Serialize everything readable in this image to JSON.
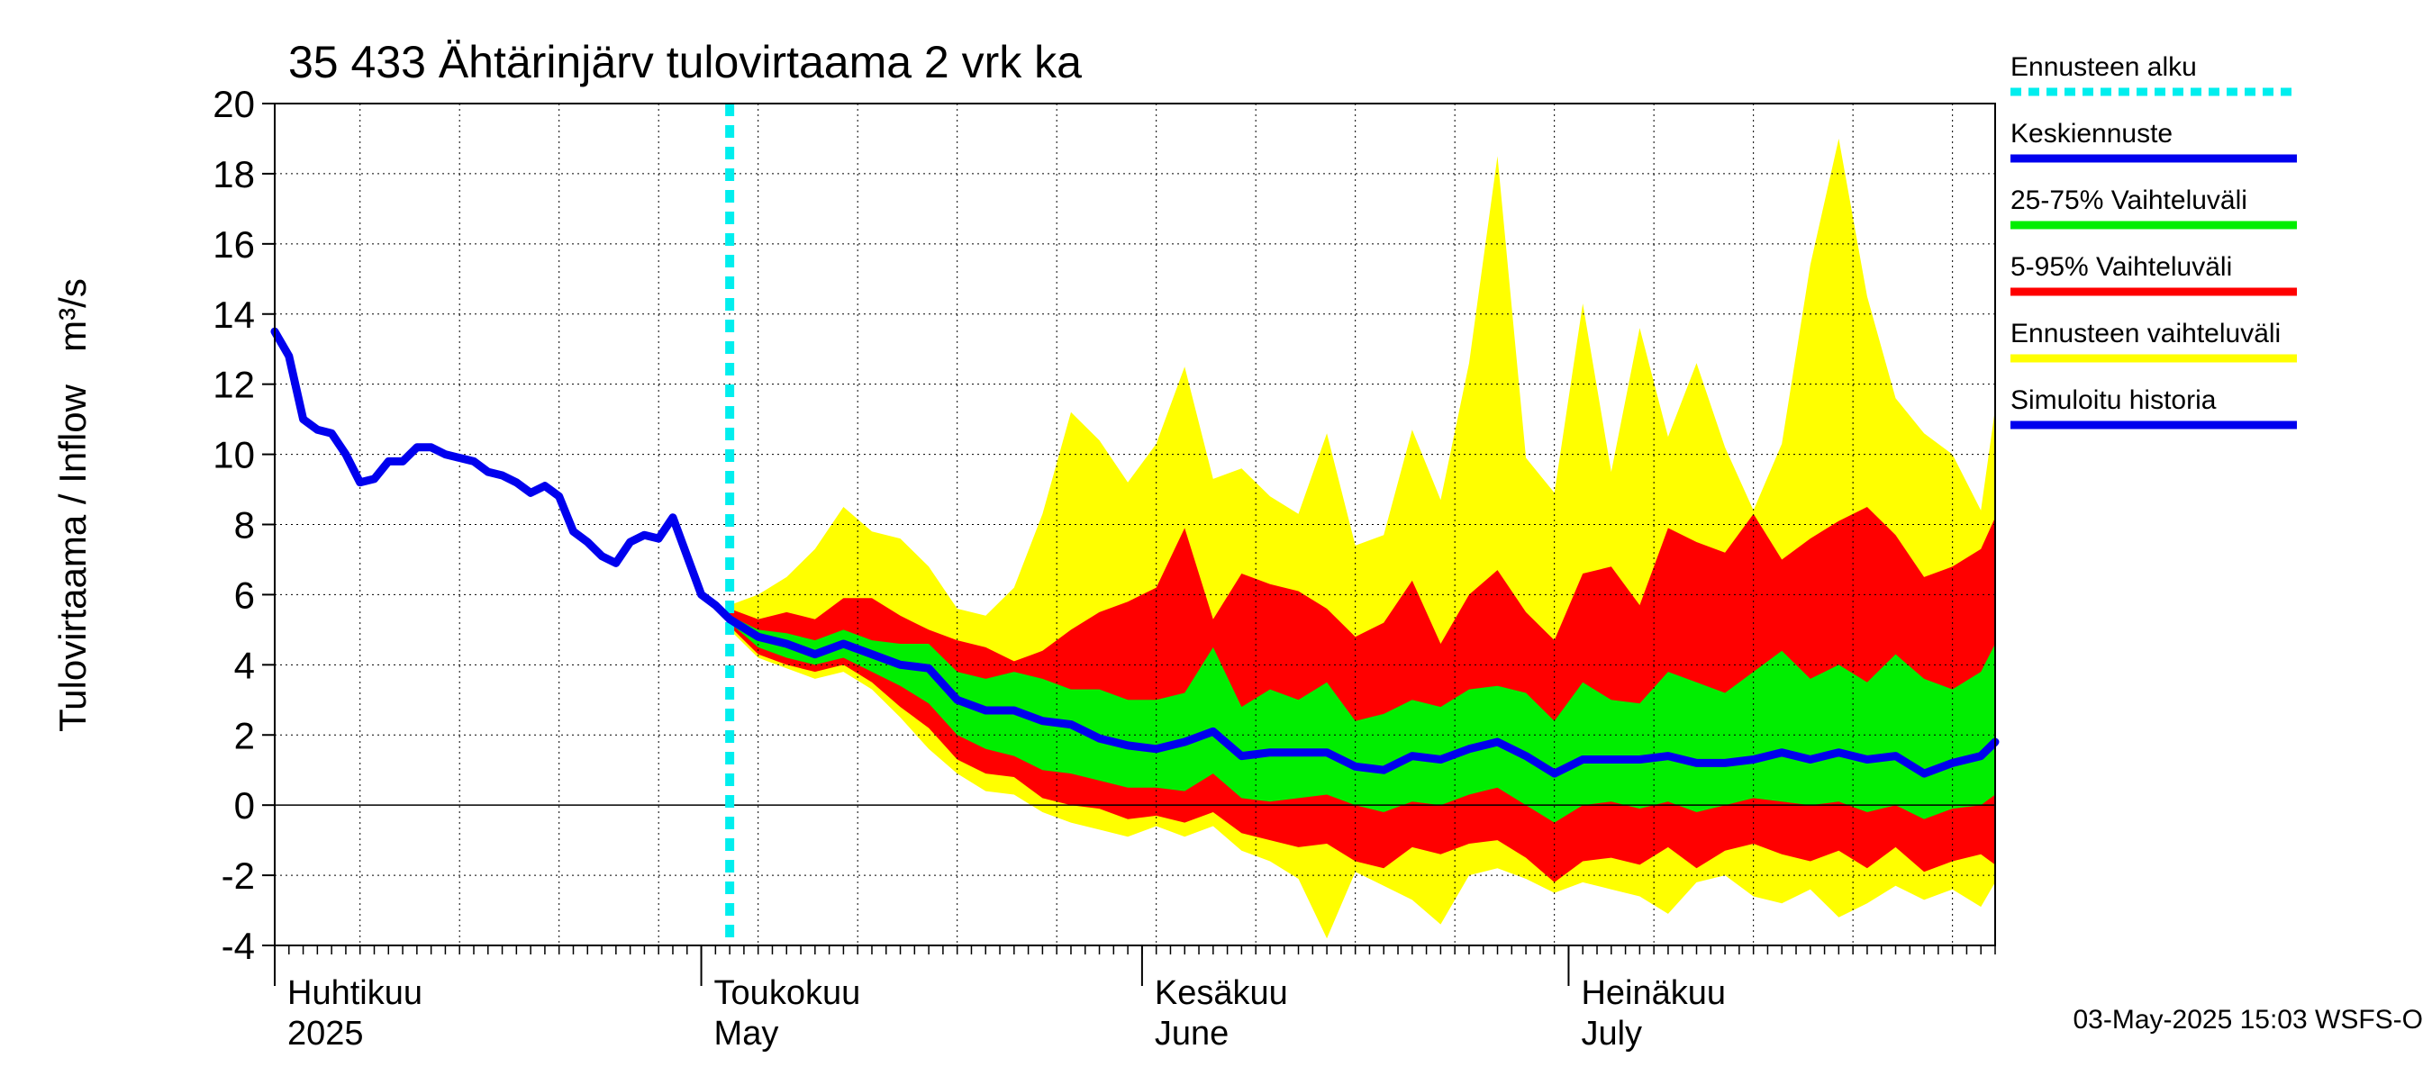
{
  "chart_data": {
    "type": "area",
    "title": "35 433 Ähtärinjärv tulovirtaama 2 vrk ka",
    "ylabel_left": "Tulovirtaama / Inflow",
    "ylabel_unit": "m³/s",
    "ylim": [
      -4,
      20
    ],
    "yticks": [
      -4,
      -2,
      0,
      2,
      4,
      6,
      8,
      10,
      12,
      14,
      16,
      18,
      20
    ],
    "ytick_labels": [
      "-4",
      "-2",
      "0",
      "2",
      "4",
      "6",
      "8",
      "10",
      "12",
      "14",
      "16",
      "18",
      "20"
    ],
    "x_start": "2025-04-01",
    "x_end": "2025-07-31",
    "forecast_start": "2025-05-03",
    "grid": true,
    "legend_position": "right",
    "months": [
      {
        "date": "2025-04-01",
        "label_fi": "Huhtikuu",
        "label_en": "2025"
      },
      {
        "date": "2025-05-01",
        "label_fi": "Toukokuu",
        "label_en": "May"
      },
      {
        "date": "2025-06-01",
        "label_fi": "Kesäkuu",
        "label_en": "June"
      },
      {
        "date": "2025-07-01",
        "label_fi": "Heinäkuu",
        "label_en": "July"
      }
    ],
    "colors": {
      "forecast_start": "#00eeee",
      "median": "#0000ee",
      "range_25_75": "#00ee00",
      "range_5_95": "#ff0000",
      "range_full": "#ffff00",
      "history": "#0000ee"
    },
    "legend": [
      {
        "key": "forecast_start",
        "label": "Ennusteen alku",
        "style": "dashed"
      },
      {
        "key": "median",
        "label": "Keskiennuste",
        "style": "solid"
      },
      {
        "key": "range_25_75",
        "label": "25-75% Vaihteluväli",
        "style": "solid"
      },
      {
        "key": "range_5_95",
        "label": "5-95% Vaihteluväli",
        "style": "solid"
      },
      {
        "key": "range_full",
        "label": "Ennusteen vaihteluväli",
        "style": "solid"
      },
      {
        "key": "history",
        "label": "Simuloitu historia",
        "style": "solid"
      }
    ],
    "history": {
      "x": [
        "2025-04-01",
        "2025-04-02",
        "2025-04-03",
        "2025-04-04",
        "2025-04-05",
        "2025-04-06",
        "2025-04-07",
        "2025-04-08",
        "2025-04-09",
        "2025-04-10",
        "2025-04-11",
        "2025-04-12",
        "2025-04-13",
        "2025-04-14",
        "2025-04-15",
        "2025-04-16",
        "2025-04-17",
        "2025-04-18",
        "2025-04-19",
        "2025-04-20",
        "2025-04-21",
        "2025-04-22",
        "2025-04-23",
        "2025-04-24",
        "2025-04-25",
        "2025-04-26",
        "2025-04-27",
        "2025-04-28",
        "2025-04-29",
        "2025-04-30",
        "2025-05-01",
        "2025-05-02",
        "2025-05-03"
      ],
      "y": [
        13.5,
        12.8,
        11.0,
        10.7,
        10.6,
        10.0,
        9.2,
        9.3,
        9.8,
        9.8,
        10.2,
        10.2,
        10.0,
        9.9,
        9.8,
        9.5,
        9.4,
        9.2,
        8.9,
        9.1,
        8.8,
        7.8,
        7.5,
        7.1,
        6.9,
        7.5,
        7.7,
        7.6,
        8.2,
        7.1,
        6.0,
        5.7,
        5.3
      ]
    },
    "forecast": {
      "x": [
        "2025-05-03",
        "2025-05-05",
        "2025-05-07",
        "2025-05-09",
        "2025-05-11",
        "2025-05-13",
        "2025-05-15",
        "2025-05-17",
        "2025-05-19",
        "2025-05-21",
        "2025-05-23",
        "2025-05-25",
        "2025-05-27",
        "2025-05-29",
        "2025-05-31",
        "2025-06-02",
        "2025-06-04",
        "2025-06-06",
        "2025-06-08",
        "2025-06-10",
        "2025-06-12",
        "2025-06-14",
        "2025-06-16",
        "2025-06-18",
        "2025-06-20",
        "2025-06-22",
        "2025-06-24",
        "2025-06-26",
        "2025-06-28",
        "2025-06-30",
        "2025-07-02",
        "2025-07-04",
        "2025-07-06",
        "2025-07-08",
        "2025-07-10",
        "2025-07-12",
        "2025-07-14",
        "2025-07-16",
        "2025-07-18",
        "2025-07-20",
        "2025-07-22",
        "2025-07-24",
        "2025-07-26",
        "2025-07-28",
        "2025-07-30",
        "2025-07-31"
      ],
      "median": [
        5.3,
        4.8,
        4.6,
        4.3,
        4.6,
        4.3,
        4.0,
        3.9,
        3.0,
        2.7,
        2.7,
        2.4,
        2.3,
        1.9,
        1.7,
        1.6,
        1.8,
        2.1,
        1.4,
        1.5,
        1.5,
        1.5,
        1.1,
        1.0,
        1.4,
        1.3,
        1.6,
        1.8,
        1.4,
        0.9,
        1.3,
        1.3,
        1.3,
        1.4,
        1.2,
        1.2,
        1.3,
        1.5,
        1.3,
        1.5,
        1.3,
        1.4,
        0.9,
        1.2,
        1.4,
        1.8
      ],
      "p25": [
        5.2,
        4.5,
        4.2,
        4.0,
        4.2,
        3.8,
        3.4,
        2.9,
        2.0,
        1.6,
        1.4,
        1.0,
        0.9,
        0.7,
        0.5,
        0.5,
        0.4,
        0.9,
        0.2,
        0.1,
        0.2,
        0.3,
        0.0,
        -0.2,
        0.1,
        0.0,
        0.3,
        0.5,
        0.0,
        -0.5,
        0.0,
        0.1,
        -0.1,
        0.1,
        -0.2,
        0.0,
        0.2,
        0.1,
        0.0,
        0.1,
        -0.2,
        0.0,
        -0.4,
        -0.1,
        0.0,
        0.3
      ],
      "p75": [
        5.4,
        5.0,
        4.9,
        4.7,
        5.0,
        4.7,
        4.6,
        4.6,
        3.8,
        3.6,
        3.8,
        3.6,
        3.3,
        3.3,
        3.0,
        3.0,
        3.2,
        4.5,
        2.8,
        3.3,
        3.0,
        3.5,
        2.4,
        2.6,
        3.0,
        2.8,
        3.3,
        3.4,
        3.2,
        2.4,
        3.5,
        3.0,
        2.9,
        3.8,
        3.5,
        3.2,
        3.8,
        4.4,
        3.6,
        4.0,
        3.5,
        4.3,
        3.6,
        3.3,
        3.8,
        4.6
      ],
      "p5": [
        5.1,
        4.3,
        4.0,
        3.8,
        4.0,
        3.5,
        2.8,
        2.2,
        1.3,
        0.9,
        0.8,
        0.2,
        0.0,
        -0.1,
        -0.4,
        -0.3,
        -0.5,
        -0.2,
        -0.8,
        -1.0,
        -1.2,
        -1.1,
        -1.6,
        -1.8,
        -1.2,
        -1.4,
        -1.1,
        -1.0,
        -1.5,
        -2.2,
        -1.6,
        -1.5,
        -1.7,
        -1.2,
        -1.8,
        -1.3,
        -1.1,
        -1.4,
        -1.6,
        -1.3,
        -1.8,
        -1.2,
        -1.9,
        -1.6,
        -1.4,
        -1.7
      ],
      "p95": [
        5.6,
        5.3,
        5.5,
        5.3,
        5.9,
        5.9,
        5.4,
        5.0,
        4.7,
        4.5,
        4.1,
        4.4,
        5.0,
        5.5,
        5.8,
        6.2,
        7.9,
        5.3,
        6.6,
        6.3,
        6.1,
        5.6,
        4.8,
        5.2,
        6.4,
        4.6,
        6.0,
        6.7,
        5.5,
        4.7,
        6.6,
        6.8,
        5.7,
        7.9,
        7.5,
        7.2,
        8.3,
        7.0,
        7.6,
        8.1,
        8.5,
        7.7,
        6.5,
        6.8,
        7.3,
        8.2
      ],
      "min": [
        5.0,
        4.2,
        3.9,
        3.6,
        3.8,
        3.3,
        2.5,
        1.6,
        0.9,
        0.4,
        0.3,
        -0.2,
        -0.5,
        -0.7,
        -0.9,
        -0.6,
        -0.9,
        -0.6,
        -1.3,
        -1.6,
        -2.1,
        -3.8,
        -1.9,
        -2.3,
        -2.7,
        -3.4,
        -2.0,
        -1.8,
        -2.1,
        -2.5,
        -2.2,
        -2.4,
        -2.6,
        -3.1,
        -2.2,
        -2.0,
        -2.6,
        -2.8,
        -2.4,
        -3.2,
        -2.8,
        -2.3,
        -2.7,
        -2.4,
        -2.9,
        -2.2
      ],
      "max": [
        5.7,
        6.0,
        6.5,
        7.3,
        8.5,
        7.8,
        7.6,
        6.8,
        5.6,
        5.4,
        6.2,
        8.3,
        11.2,
        10.4,
        9.2,
        10.3,
        12.5,
        9.3,
        9.6,
        8.8,
        8.3,
        10.6,
        7.4,
        7.7,
        10.7,
        8.7,
        12.6,
        18.5,
        9.9,
        8.9,
        14.3,
        9.5,
        13.6,
        10.5,
        12.6,
        10.2,
        8.4,
        10.3,
        15.4,
        19.0,
        14.5,
        11.6,
        10.6,
        10.0,
        8.4,
        11.3
      ]
    }
  },
  "footer": "03-May-2025 15:03 WSFS-O"
}
